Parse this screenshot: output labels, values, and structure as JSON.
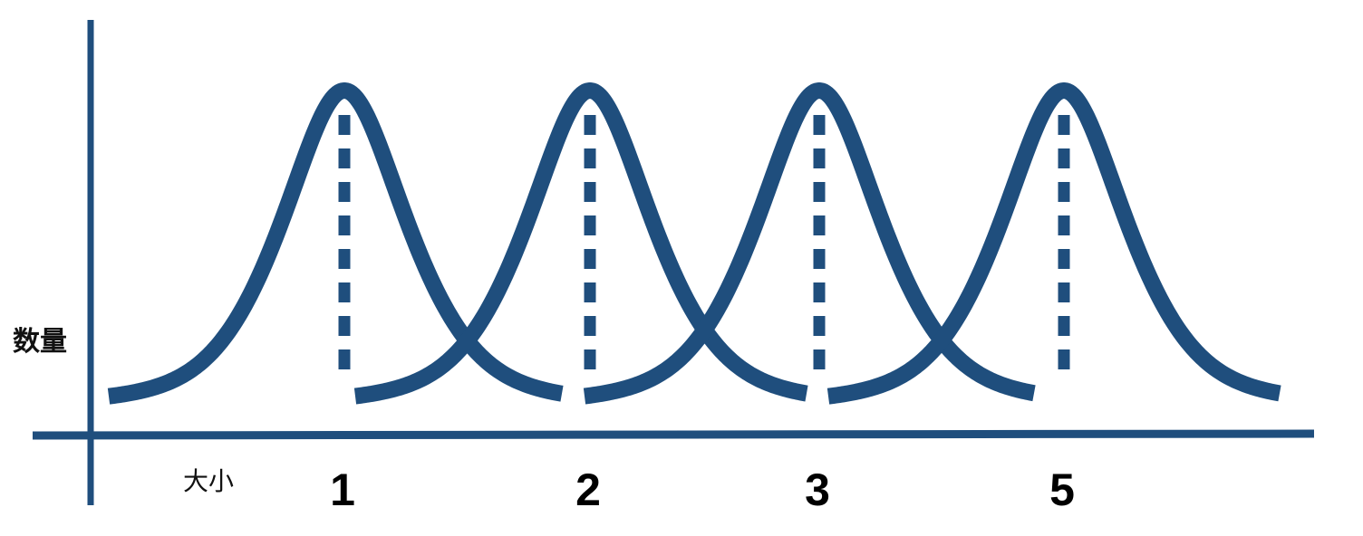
{
  "axis": {
    "y_label": "数量",
    "x_label": "大小",
    "color": "#1f4e7d"
  },
  "peaks": [
    {
      "label": "1"
    },
    {
      "label": "2"
    },
    {
      "label": "3"
    },
    {
      "label": "5"
    }
  ]
}
